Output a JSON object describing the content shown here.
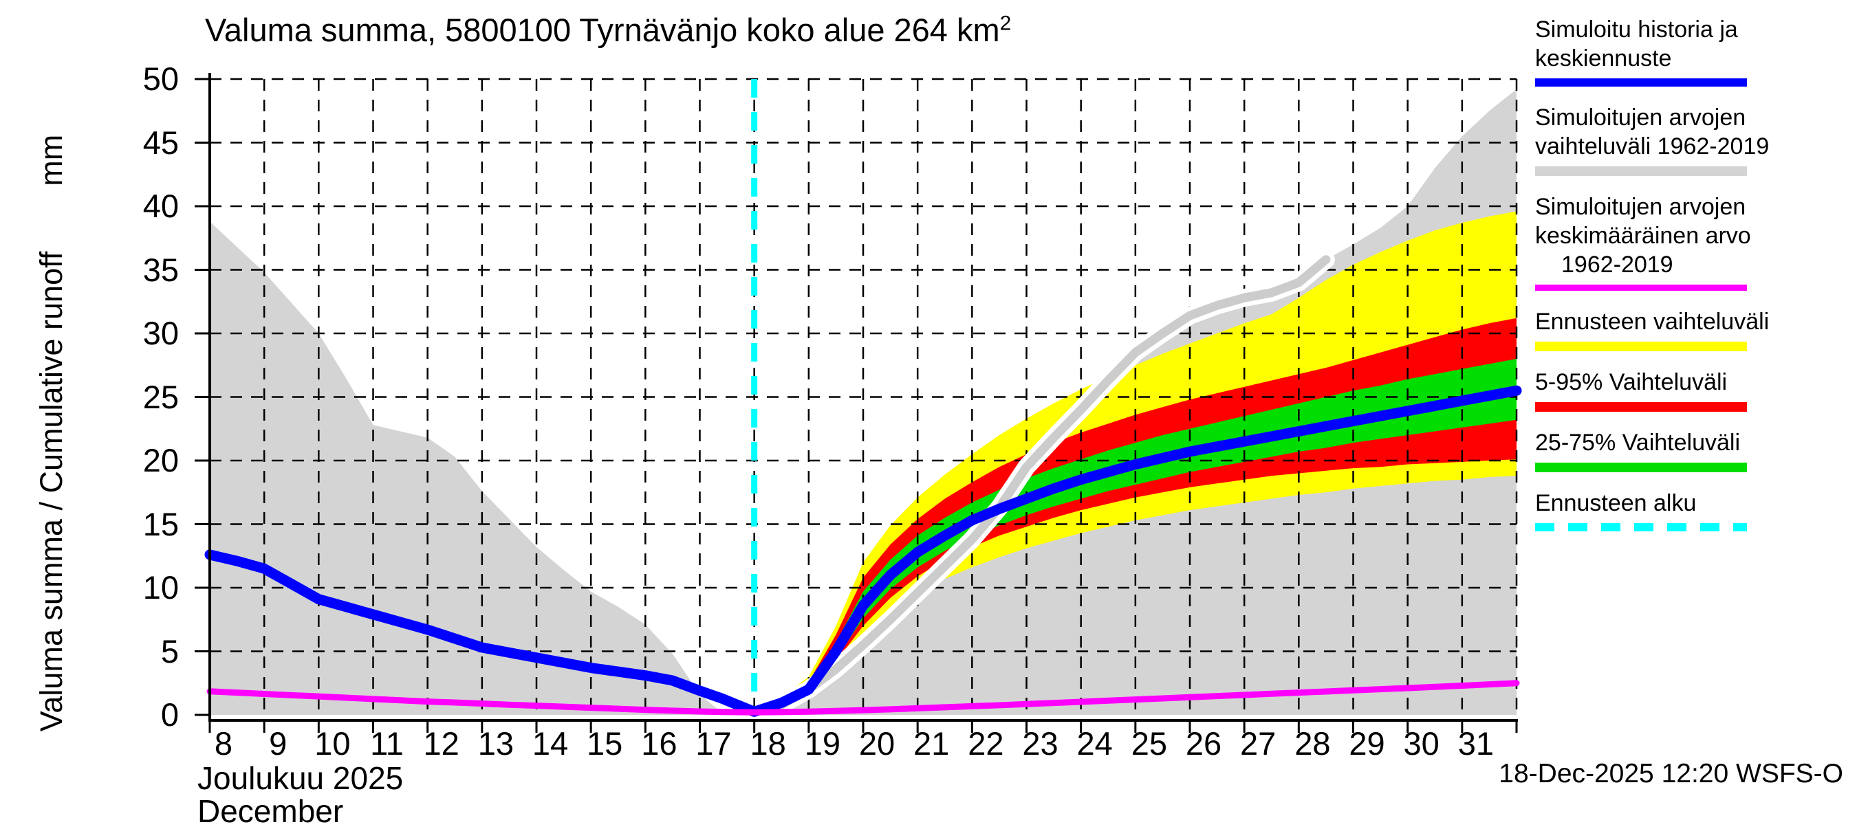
{
  "title": {
    "text": "Valuma summa, 5800100 Tyrnävänjo koko alue 264 km",
    "area_sup": "2"
  },
  "y_axis": {
    "label_main": "Valuma summa / Cumulative runoff",
    "label_unit": "mm",
    "tick_values": [
      0,
      5,
      10,
      15,
      20,
      25,
      30,
      35,
      40,
      45,
      50
    ]
  },
  "x_axis": {
    "month_fi": "Joulukuu 2025",
    "month_en": "December",
    "tick_days": [
      8,
      9,
      10,
      11,
      12,
      13,
      14,
      15,
      16,
      17,
      18,
      19,
      20,
      21,
      22,
      23,
      24,
      25,
      26,
      27,
      28,
      29,
      30,
      31
    ]
  },
  "footer": {
    "timestamp": "18-Dec-2025 12:20 WSFS-O"
  },
  "colors": {
    "blue": "#0000ff",
    "gray_band": "#d4d4d4",
    "gray_line": "#cccccc",
    "magenta": "#ff00ff",
    "yellow": "#ffff00",
    "red": "#ff0000",
    "green": "#00dd00",
    "cyan": "#00ffff",
    "grid": "#000000"
  },
  "legend": {
    "items": [
      {
        "lines": [
          "Simuloitu historia ja",
          "keskiennuste"
        ],
        "color_key": "blue",
        "height": 12,
        "dashed": false
      },
      {
        "lines": [
          "Simuloitujen arvojen",
          "vaihteluväli 1962-2019"
        ],
        "color_key": "gray_band",
        "height": 14,
        "dashed": false
      },
      {
        "lines": [
          "Simuloitujen arvojen",
          "keskimääräinen arvo",
          "1962-2019"
        ],
        "color_key": "magenta",
        "height": 9,
        "dashed": false
      },
      {
        "lines": [
          "Ennusteen vaihteluväli"
        ],
        "color_key": "yellow",
        "height": 14,
        "dashed": false
      },
      {
        "lines": [
          "5-95% Vaihteluväli"
        ],
        "color_key": "red",
        "height": 14,
        "dashed": false
      },
      {
        "lines": [
          "25-75% Vaihteluväli"
        ],
        "color_key": "green",
        "height": 14,
        "dashed": false
      },
      {
        "lines": [
          "Ennusteen alku"
        ],
        "color_key": "cyan",
        "height": 12,
        "dashed": true
      }
    ]
  },
  "chart_data": {
    "type": "area",
    "title": "Valuma summa, 5800100 Tyrnävänjo koko alue 264 km2",
    "xlabel": "Joulukuu 2025 / December (day of month)",
    "ylabel": "Valuma summa / Cumulative runoff (mm)",
    "xlim": [
      8,
      32
    ],
    "ylim": [
      0,
      50
    ],
    "grid": true,
    "legend_position": "right",
    "forecast_start_day": 18,
    "series": [
      {
        "name": "Simuloitujen arvojen vaihteluväli 1962-2019 (historical range, filled to 0)",
        "role": "gray_envelope",
        "x": [
          8,
          8.5,
          9,
          9.5,
          10,
          10.5,
          11,
          11.5,
          12,
          12.5,
          13,
          13.5,
          14,
          14.5,
          15,
          15.5,
          16,
          16.5,
          17,
          17.4,
          18,
          18.5,
          19,
          19.5,
          20,
          20.5,
          21,
          21.5,
          22,
          22.5,
          23,
          23.5,
          24,
          24.5,
          25,
          25.5,
          26,
          26.5,
          27,
          27.5,
          28,
          28.5,
          29,
          29.5,
          30,
          30.5,
          31,
          31.5,
          32
        ],
        "y": [
          38.8,
          36.8,
          34.8,
          32.4,
          30.0,
          26.5,
          22.8,
          22.3,
          21.8,
          20.3,
          17.6,
          15.4,
          13.2,
          11.4,
          9.7,
          8.5,
          7.1,
          4.8,
          1.6,
          0.2,
          0.1,
          0.8,
          2.0,
          3.6,
          5.5,
          7.5,
          9.6,
          11.7,
          13.8,
          16.3,
          19.5,
          21.8,
          24.0,
          26.3,
          28.5,
          30.0,
          31.4,
          32.2,
          32.8,
          33.2,
          34.0,
          35.8,
          37.0,
          38.3,
          40.0,
          43.0,
          45.5,
          47.5,
          49.2
        ]
      },
      {
        "name": "Ennusteen vaihteluväli (forecast min-max)",
        "role": "yellow_band",
        "x": [
          18,
          18.5,
          19,
          19.5,
          20,
          20.5,
          21,
          21.5,
          22,
          22.5,
          23,
          23.5,
          24,
          24.5,
          25,
          25.5,
          26,
          26.5,
          27,
          27.5,
          28,
          28.5,
          29,
          29.5,
          30,
          30.5,
          31,
          31.5,
          32
        ],
        "y_hi": [
          0.45,
          1.4,
          3.0,
          7.0,
          12.0,
          14.9,
          17.1,
          18.9,
          20.5,
          22.0,
          23.3,
          24.5,
          25.6,
          26.6,
          27.5,
          28.4,
          29.2,
          30.0,
          30.8,
          31.5,
          32.8,
          34.2,
          35.4,
          36.4,
          37.3,
          38.1,
          38.7,
          39.2,
          39.6
        ],
        "y_lo": [
          0.2,
          0.65,
          1.4,
          3.5,
          6.0,
          8.0,
          9.6,
          10.7,
          11.6,
          12.4,
          13.1,
          13.7,
          14.3,
          14.8,
          15.3,
          15.7,
          16.1,
          16.4,
          16.7,
          17.0,
          17.3,
          17.5,
          17.8,
          18.0,
          18.2,
          18.4,
          18.5,
          18.7,
          18.8
        ]
      },
      {
        "name": "5-95% Vaihteluväli",
        "role": "red_band",
        "x": [
          18,
          18.5,
          19,
          19.5,
          20,
          20.5,
          21,
          21.5,
          22,
          22.5,
          23,
          23.5,
          24,
          24.5,
          25,
          25.5,
          26,
          26.5,
          27,
          27.5,
          28,
          28.5,
          29,
          29.5,
          30,
          30.5,
          31,
          31.5,
          32
        ],
        "y_hi": [
          0.4,
          1.2,
          2.6,
          6.3,
          10.8,
          13.4,
          15.4,
          17.0,
          18.3,
          19.5,
          20.5,
          21.4,
          22.2,
          22.9,
          23.6,
          24.2,
          24.8,
          25.3,
          25.8,
          26.3,
          26.8,
          27.3,
          27.9,
          28.5,
          29.1,
          29.7,
          30.3,
          30.8,
          31.2
        ],
        "y_lo": [
          0.25,
          0.8,
          1.7,
          4.2,
          7.0,
          9.2,
          10.9,
          12.2,
          13.2,
          14.1,
          14.8,
          15.5,
          16.1,
          16.6,
          17.1,
          17.5,
          17.9,
          18.2,
          18.5,
          18.8,
          19.0,
          19.2,
          19.4,
          19.5,
          19.7,
          19.8,
          19.9,
          20.0,
          20.1
        ]
      },
      {
        "name": "25-75% Vaihteluväli",
        "role": "green_band",
        "x": [
          18,
          18.5,
          19,
          19.5,
          20,
          20.5,
          21,
          21.5,
          22,
          22.5,
          23,
          23.5,
          24,
          24.5,
          25,
          25.5,
          26,
          26.5,
          27,
          27.5,
          28,
          28.5,
          29,
          29.5,
          30,
          30.5,
          31,
          31.5,
          32
        ],
        "y_hi": [
          0.35,
          1.1,
          2.3,
          5.7,
          9.7,
          12.2,
          14.1,
          15.5,
          16.7,
          17.7,
          18.6,
          19.4,
          20.1,
          20.8,
          21.4,
          22.0,
          22.5,
          23.0,
          23.5,
          24.0,
          24.5,
          25.0,
          25.5,
          25.9,
          26.4,
          26.8,
          27.2,
          27.6,
          28.0
        ],
        "y_lo": [
          0.3,
          0.85,
          1.8,
          4.4,
          7.6,
          9.9,
          11.6,
          12.9,
          14.0,
          14.9,
          15.7,
          16.4,
          17.0,
          17.6,
          18.1,
          18.6,
          19.1,
          19.5,
          19.9,
          20.3,
          20.7,
          21.0,
          21.4,
          21.7,
          22.0,
          22.3,
          22.6,
          22.9,
          23.2
        ]
      },
      {
        "name": "Simuloitu historia ja keskiennuste",
        "role": "blue_line",
        "x": [
          8,
          8.5,
          9,
          9.5,
          10,
          10.5,
          11,
          11.5,
          12,
          12.5,
          13,
          13.5,
          14,
          14.5,
          15,
          15.5,
          16,
          16.5,
          17,
          17.4,
          18,
          18.5,
          19,
          19.5,
          20,
          20.5,
          21,
          21.5,
          22,
          22.5,
          23,
          23.5,
          24,
          24.5,
          25,
          25.5,
          26,
          26.5,
          27,
          27.5,
          28,
          28.5,
          29,
          29.5,
          30,
          30.5,
          31,
          31.5,
          32
        ],
        "y": [
          12.6,
          12.1,
          11.5,
          10.3,
          9.1,
          8.5,
          7.9,
          7.3,
          6.7,
          6.0,
          5.3,
          4.9,
          4.5,
          4.1,
          3.7,
          3.4,
          3.1,
          2.7,
          1.9,
          1.3,
          0.25,
          0.95,
          2.0,
          5.0,
          8.6,
          11.0,
          12.8,
          14.1,
          15.3,
          16.2,
          17.0,
          17.8,
          18.5,
          19.1,
          19.7,
          20.2,
          20.7,
          21.1,
          21.5,
          21.9,
          22.3,
          22.7,
          23.1,
          23.5,
          23.9,
          24.3,
          24.7,
          25.1,
          25.5
        ]
      },
      {
        "name": "Simuloitujen arvojen keskimääräinen arvo 1962-2019",
        "role": "magenta_line",
        "x": [
          8,
          8.5,
          9,
          9.5,
          10,
          10.5,
          11,
          11.5,
          12,
          12.5,
          13,
          13.5,
          14,
          14.5,
          15,
          15.5,
          16,
          16.5,
          17,
          17.4,
          18,
          18.5,
          19,
          19.5,
          20,
          20.5,
          21,
          21.5,
          22,
          22.5,
          23,
          23.5,
          24,
          24.5,
          25,
          25.5,
          26,
          26.5,
          27,
          27.5,
          28,
          28.5,
          29,
          29.5,
          30,
          30.5,
          31,
          31.5,
          32
        ],
        "y": [
          1.85,
          1.75,
          1.65,
          1.55,
          1.45,
          1.35,
          1.25,
          1.15,
          1.05,
          0.97,
          0.89,
          0.8,
          0.72,
          0.64,
          0.56,
          0.48,
          0.4,
          0.33,
          0.27,
          0.23,
          0.2,
          0.22,
          0.26,
          0.31,
          0.37,
          0.44,
          0.52,
          0.6,
          0.68,
          0.76,
          0.85,
          0.94,
          1.03,
          1.12,
          1.21,
          1.3,
          1.39,
          1.48,
          1.57,
          1.66,
          1.75,
          1.84,
          1.93,
          2.02,
          2.11,
          2.2,
          2.3,
          2.4,
          2.5
        ]
      },
      {
        "name": "Ennusteen alku (forecast start marker)",
        "role": "forecast_start_line",
        "x": [
          18,
          18
        ],
        "y": [
          0,
          50
        ]
      }
    ]
  }
}
